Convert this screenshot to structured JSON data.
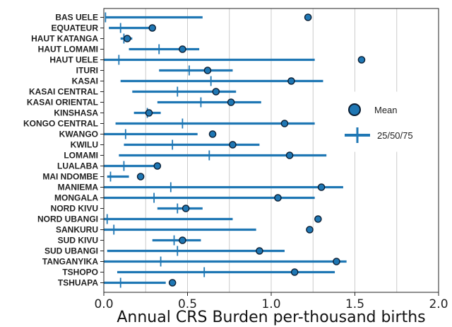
{
  "chart_data": {
    "type": "scatter",
    "title": "",
    "xlabel": "Annual CRS Burden per-thousand births",
    "ylabel": "",
    "xlim": [
      0.0,
      2.0
    ],
    "xticks": [
      0.0,
      0.5,
      1.0,
      1.5,
      2.0
    ],
    "xtick_labels": [
      "0.0",
      "0.5",
      "1.0",
      "1.5",
      "2.0"
    ],
    "grid": "x",
    "legend": {
      "position": "right",
      "entries": [
        "Mean",
        "25/50/75"
      ]
    },
    "colors": {
      "series": "#1f77b4",
      "marker_edge": "#0b1e33",
      "grid": "#cccccc"
    },
    "categories": [
      "BAS UELE",
      "EQUATEUR",
      "HAUT KATANGA",
      "HAUT LOMAMI",
      "HAUT UELE",
      "ITURI",
      "KASAI",
      "KASAI CENTRAL",
      "KASAI ORIENTAL",
      "KINSHASA",
      "KONGO CENTRAL",
      "KWANGO",
      "KWILU",
      "LOMAMI",
      "LUALABA",
      "MAI NDOMBE",
      "MANIEMA",
      "MONGALA",
      "NORD KIVU",
      "NORD UBANGI",
      "SANKURU",
      "SUD KIVU",
      "SUD UBANGI",
      "TANGANYIKA",
      "TSHOPO",
      "TSHUAPA"
    ],
    "series": [
      {
        "name": "Mean",
        "values": [
          1.22,
          0.29,
          0.14,
          0.47,
          1.54,
          0.62,
          1.12,
          0.67,
          0.76,
          0.27,
          1.08,
          0.65,
          0.77,
          1.11,
          0.32,
          0.22,
          1.3,
          1.04,
          0.49,
          1.28,
          1.23,
          0.47,
          0.93,
          1.39,
          1.14,
          0.41
        ]
      },
      {
        "name": "25",
        "values": [
          0.01,
          0.03,
          0.1,
          0.15,
          0.0,
          0.33,
          0.1,
          0.17,
          0.32,
          0.18,
          0.07,
          0.0,
          0.12,
          0.09,
          0.0,
          0.02,
          0.0,
          0.0,
          0.32,
          0.0,
          0.0,
          0.29,
          0.02,
          0.0,
          0.08,
          0.0
        ]
      },
      {
        "name": "50",
        "values": [
          0.01,
          0.1,
          0.12,
          0.33,
          0.09,
          0.51,
          0.64,
          0.44,
          0.58,
          0.26,
          0.47,
          0.13,
          0.41,
          0.63,
          0.12,
          0.04,
          0.4,
          0.3,
          0.44,
          0.02,
          0.06,
          0.42,
          0.44,
          0.34,
          0.6,
          0.1
        ]
      },
      {
        "name": "75",
        "values": [
          0.59,
          0.28,
          0.17,
          0.57,
          1.26,
          0.77,
          1.31,
          0.79,
          0.94,
          0.34,
          1.26,
          0.56,
          0.93,
          1.33,
          0.3,
          0.15,
          1.43,
          1.26,
          0.59,
          0.77,
          0.91,
          0.58,
          1.08,
          1.45,
          1.38,
          0.37
        ]
      }
    ]
  }
}
